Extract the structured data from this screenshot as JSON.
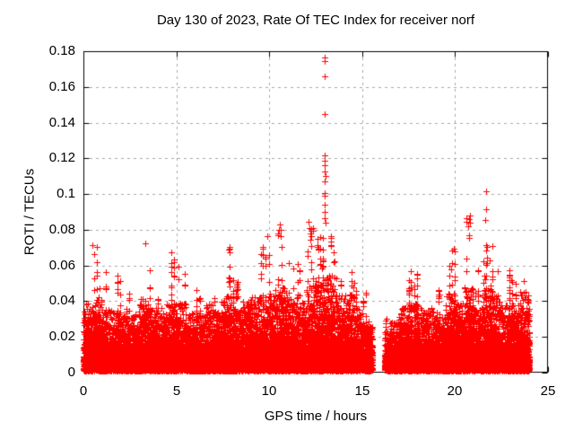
{
  "chart_data": {
    "type": "scatter",
    "title": "Day 130 of 2023, Rate Of TEC Index for receiver norf",
    "xlabel": "GPS time / hours",
    "ylabel": "ROTI / TECUs",
    "xlim": [
      0,
      25
    ],
    "ylim": [
      0,
      0.18
    ],
    "xticks": [
      0,
      5,
      10,
      15,
      20,
      25
    ],
    "xtick_labels": [
      "0",
      "5",
      "10",
      "15",
      "20",
      "25"
    ],
    "yticks": [
      0,
      0.02,
      0.04,
      0.06,
      0.08,
      0.1,
      0.12,
      0.14,
      0.16,
      0.18
    ],
    "ytick_labels": [
      "0",
      "0.02",
      "0.04",
      "0.06",
      "0.08",
      "0.1",
      "0.12",
      "0.14",
      "0.16",
      "0.18"
    ],
    "grid": true,
    "legend": "none",
    "marker": {
      "shape": "plus",
      "size": 7,
      "color": "#ff0000"
    },
    "colors": {
      "marker": "#ff0000",
      "grid": "#a8a8a8",
      "border": "#000000",
      "background": "#ffffff",
      "text": "#000000"
    },
    "series_name": "ROTI",
    "data_time_range_hours": [
      0,
      24
    ],
    "data_gap_hours": [
      15.55,
      16.2
    ],
    "bin_width_hours": 0.5,
    "dense_band_top_per_bin": [
      0.03,
      0.032,
      0.028,
      0.027,
      0.025,
      0.026,
      0.032,
      0.028,
      0.026,
      0.03,
      0.03,
      0.026,
      0.025,
      0.03,
      0.027,
      0.033,
      0.028,
      0.031,
      0.033,
      0.034,
      0.036,
      0.038,
      0.032,
      0.03,
      0.04,
      0.04,
      0.042,
      0.034,
      0.034,
      0.028,
      0.022,
      0.02,
      0.018,
      0.022,
      0.028,
      0.03,
      0.026,
      0.028,
      0.024,
      0.034,
      0.03,
      0.038,
      0.028,
      0.036,
      0.034,
      0.03,
      0.03,
      0.035
    ],
    "streak_max_per_bin": [
      0.064,
      0.0715,
      0.064,
      0.055,
      0.048,
      0.05,
      0.0725,
      0.058,
      0.052,
      0.068,
      0.067,
      0.052,
      0.048,
      0.067,
      0.056,
      0.075,
      0.058,
      0.07,
      0.072,
      0.0765,
      0.07,
      0.083,
      0.065,
      0.062,
      0.0845,
      0.078,
      0.078,
      0.065,
      0.066,
      0.055,
      0.045,
      0.04,
      0.032,
      0.04,
      0.054,
      0.058,
      0.05,
      0.055,
      0.047,
      0.07,
      0.06,
      0.088,
      0.058,
      0.075,
      0.065,
      0.058,
      0.055,
      0.062
    ],
    "baseline_min": 0.001,
    "outliers": [
      [
        12.98,
        0.1765
      ],
      [
        12.99,
        0.1745
      ],
      [
        12.98,
        0.166
      ],
      [
        12.99,
        0.1448
      ],
      [
        13.0,
        0.1217
      ],
      [
        13.0,
        0.1185
      ],
      [
        12.99,
        0.116
      ],
      [
        13.0,
        0.1125
      ],
      [
        13.01,
        0.11
      ],
      [
        13.0,
        0.107
      ],
      [
        12.99,
        0.1005
      ],
      [
        12.99,
        0.099
      ],
      [
        12.98,
        0.094
      ],
      [
        13.0,
        0.09
      ],
      [
        12.98,
        0.0865
      ],
      [
        13.02,
        0.084
      ],
      [
        21.66,
        0.1016
      ],
      [
        21.66,
        0.0915
      ],
      [
        21.6,
        0.0855
      ],
      [
        21.66,
        0.0714
      ],
      [
        21.7,
        0.0644
      ],
      [
        20.78,
        0.088
      ],
      [
        20.75,
        0.086
      ],
      [
        20.8,
        0.084
      ],
      [
        20.72,
        0.082
      ],
      [
        20.75,
        0.077
      ],
      [
        20.76,
        0.0755
      ],
      [
        10.55,
        0.083
      ],
      [
        10.6,
        0.08
      ],
      [
        10.62,
        0.0764
      ],
      [
        12.1,
        0.0845
      ],
      [
        12.15,
        0.081
      ],
      [
        12.2,
        0.078
      ],
      [
        9.9,
        0.0764
      ],
      [
        19.95,
        0.0694
      ],
      [
        13.3,
        0.0754
      ],
      [
        0.5,
        0.0714
      ],
      [
        3.35,
        0.0724
      ],
      [
        22.3,
        0.057
      ],
      [
        23.0,
        0.0518
      ],
      [
        23.7,
        0.0513
      ]
    ],
    "render": {
      "seed": 1307,
      "epochs": 2800,
      "points_per_epoch": 7
    }
  }
}
